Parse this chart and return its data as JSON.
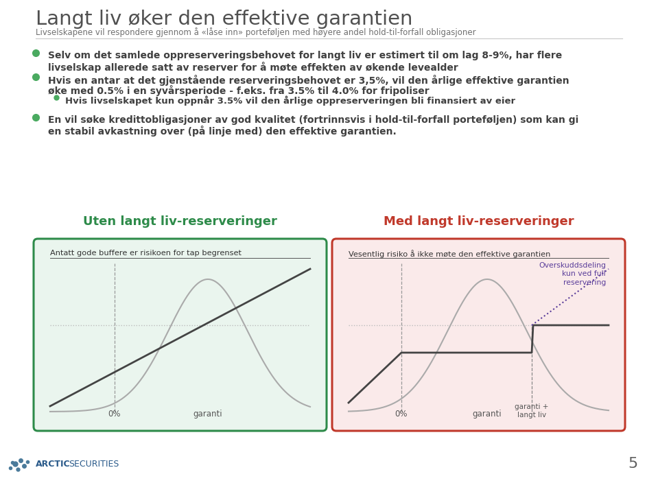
{
  "title": "Langt liv øker den effektive garantien",
  "subtitle": "Livselskapene vil respondere gjennom å «låse inn» porteføljen med høyere andel hold-til-forfall obligasjoner",
  "bullet1_line1": "Selv om det samlede oppreserveringsbehovet for langt liv er estimert til om lag 8-9%, har flere",
  "bullet1_line2": "livselskap allerede satt av reserver for å møte effekten av økende levealder",
  "bullet2_line1": "Hvis en antar at det gjenstående reserveringsbehovet er 3,5%, vil den årlige effektive garantien",
  "bullet2_line2": "øke med 0.5% i en syvårsperiode - f.eks. fra 3.5% til 4.0% for fripoliser",
  "sub_bullet": "Hvis livselskapet kun oppnår 3.5% vil den årlige oppreserveringen bli finansiert av eier",
  "bullet3_line1": "En vil søke kredittobligasjoner av god kvalitet (fortrinnsvis i hold-til-forfall porteføljen) som kan gi",
  "bullet3_line2": "en stabil avkastning over (på linje med) den effektive garantien.",
  "panel1_title": "Uten langt liv-reserveringer",
  "panel1_subtitle": "Antatt gode buffere er risikoen for tap begrenset",
  "panel2_title": "Med langt liv-reserveringer",
  "panel2_subtitle": "Vesentlig risiko å ikke møte den effektive garantien",
  "panel2_annotation": "Overskuddsdeling\nkun ved full\nreservering",
  "panel1_xlabel1": "0%",
  "panel1_xlabel2": "garanti",
  "panel2_xlabel1": "0%",
  "panel2_xlabel2": "garanti",
  "panel2_xlabel3": "garanti +\nlangt liv",
  "title_color": "#505050",
  "subtitle_color": "#707070",
  "bullet_color": "#404040",
  "panel1_title_color": "#2e8b4a",
  "panel2_title_color": "#c0392b",
  "panel1_bg": "#eaf5ee",
  "panel2_bg": "#faeaea",
  "panel1_border": "#2e8b4a",
  "panel2_border": "#c0392b",
  "curve_color": "#aaaaaa",
  "line_color": "#555555",
  "dotted_color": "#bbbbbb",
  "purple_color": "#5a3d9a",
  "footer_bold": "ARCTIC",
  "footer_light": " SECURITIES",
  "page_number": "5",
  "bg_color": "#ffffff"
}
